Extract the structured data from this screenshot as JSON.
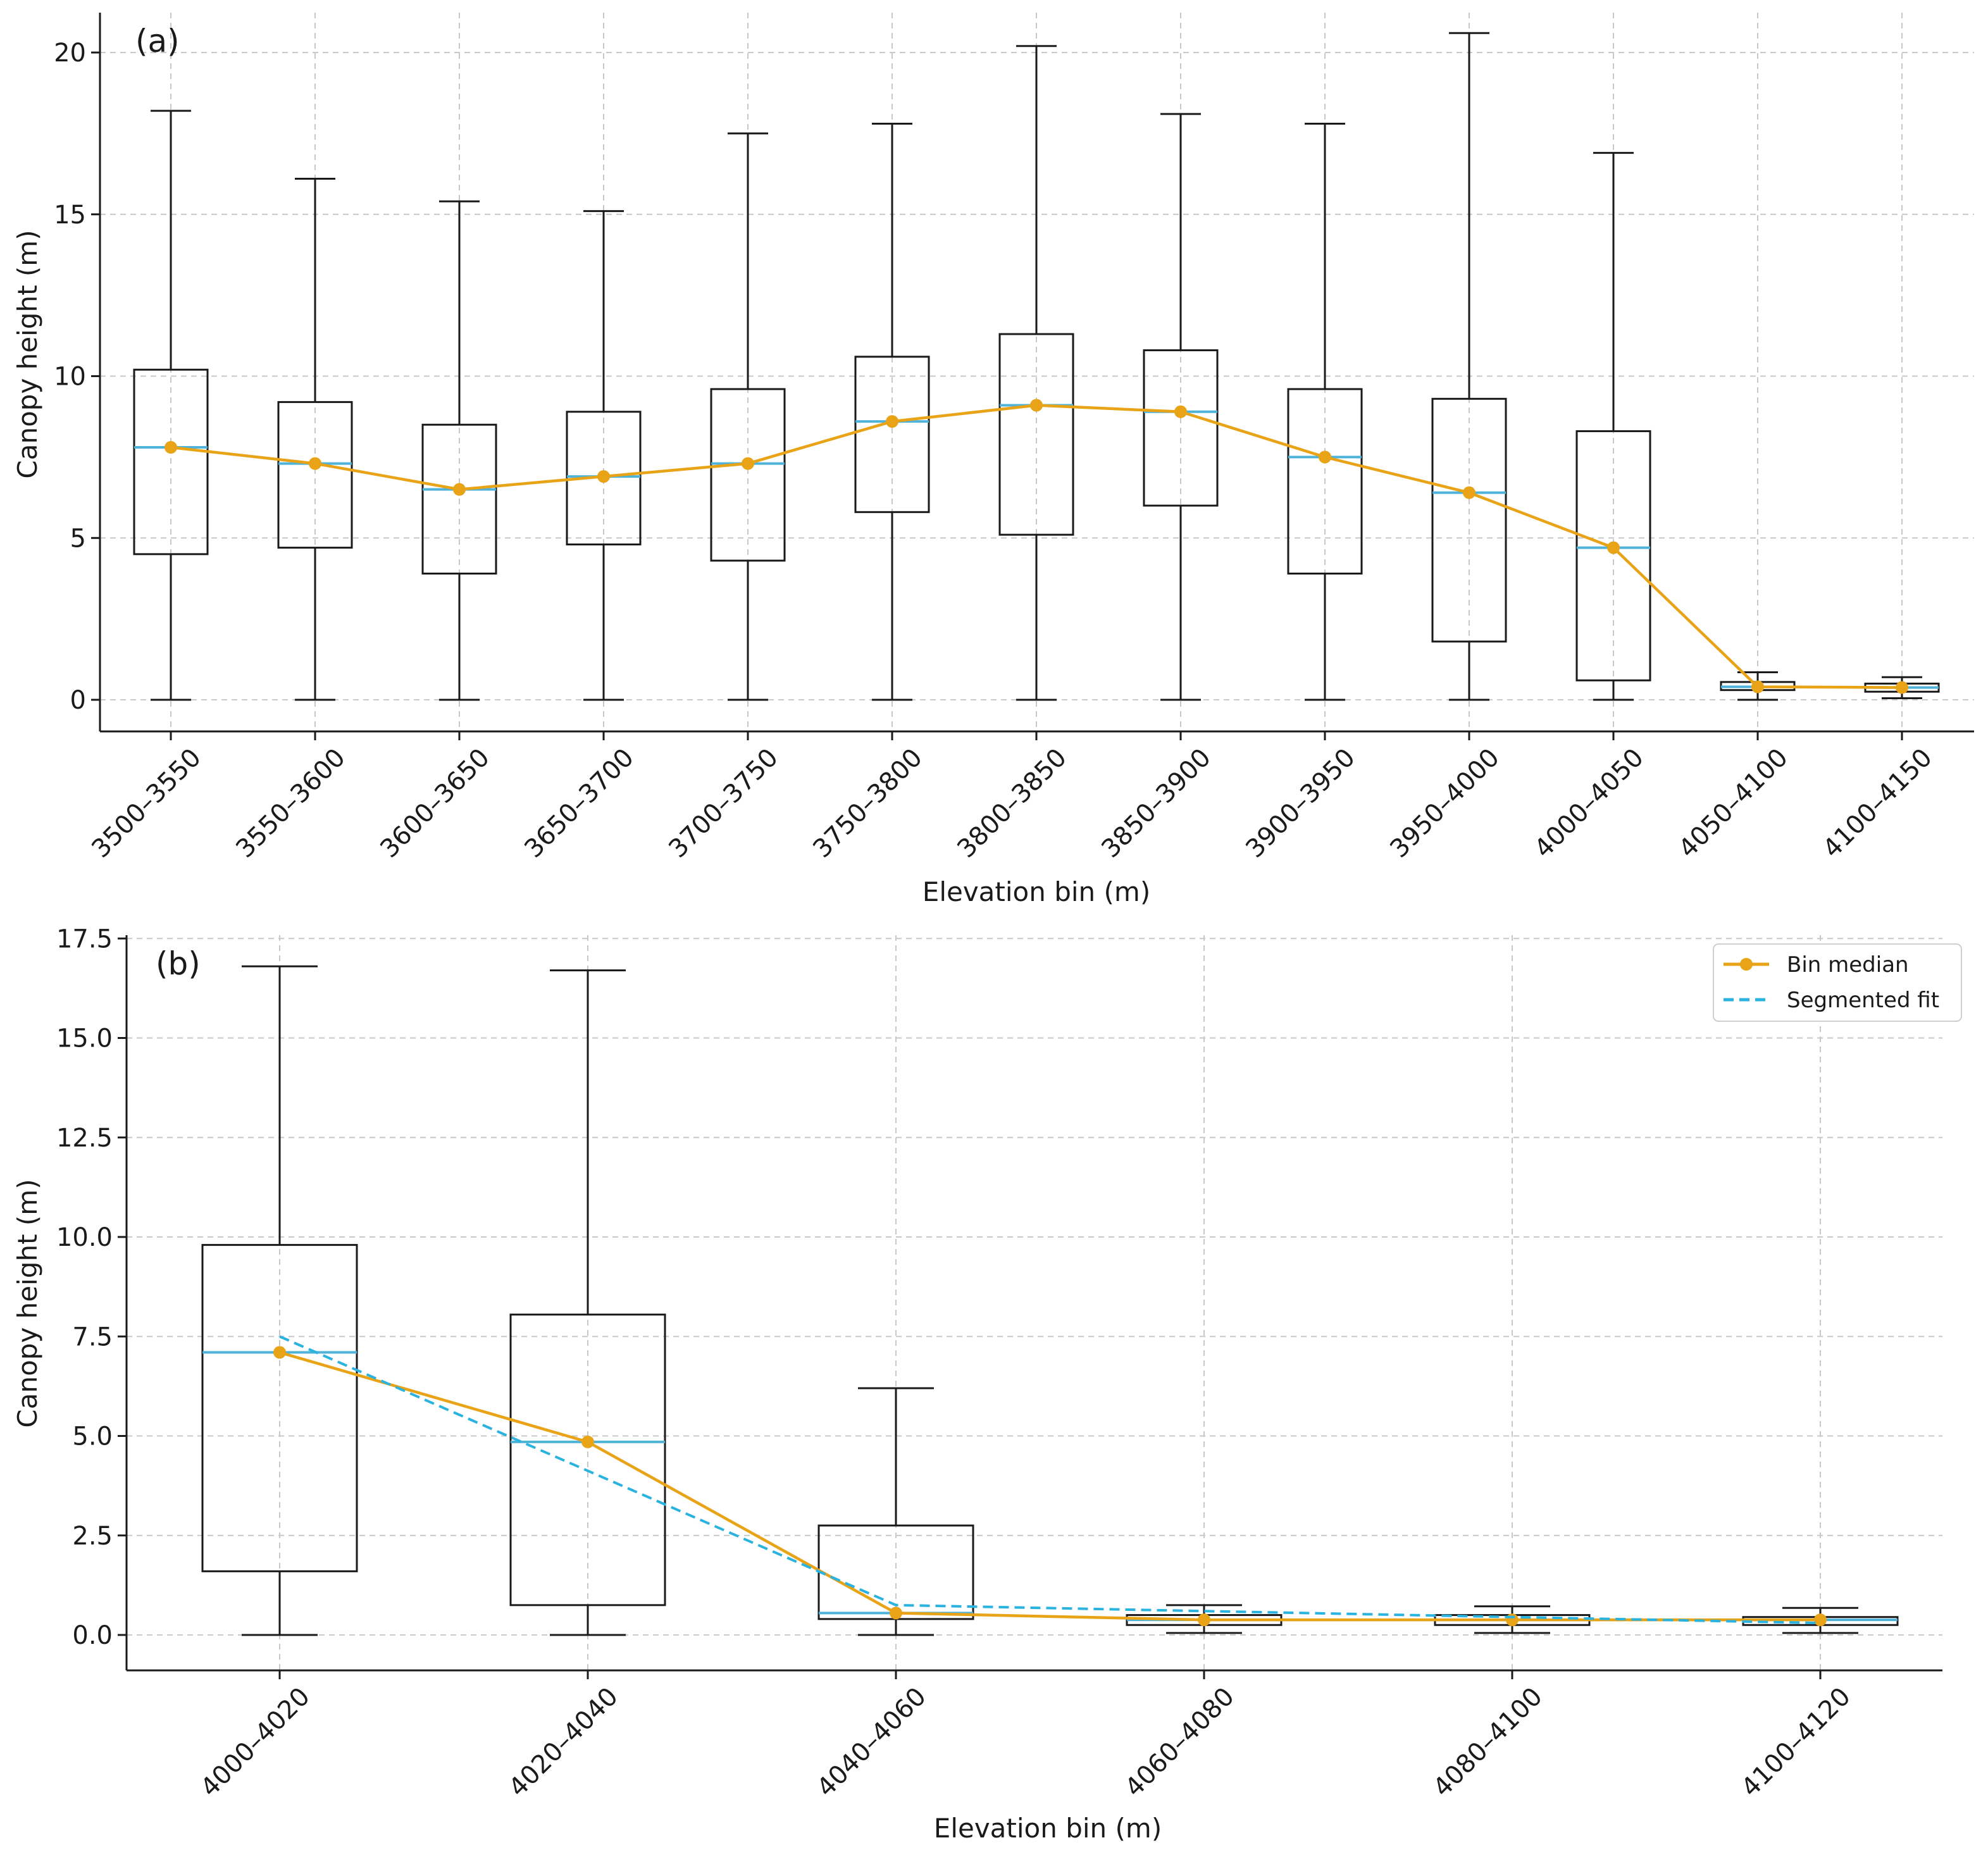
{
  "colors": {
    "median_line": "#E8A317",
    "box_median": "#4FB3D9",
    "segmented_fit": "#2BB3E0",
    "box_stroke": "#1a1a1a",
    "grid": "#c8c8c8"
  },
  "chart_data": [
    {
      "id": "a",
      "type": "box",
      "panel_label": "(a)",
      "xlabel": "Elevation bin (m)",
      "ylabel": "Canopy height (m)",
      "ylim": [
        -1,
        21
      ],
      "yticks": [
        0,
        5,
        10,
        15,
        20
      ],
      "ytick_labels": [
        "0",
        "5",
        "10",
        "15",
        "20"
      ],
      "categories": [
        "3500–3550",
        "3550–3600",
        "3600–3650",
        "3650–3700",
        "3700–3750",
        "3750–3800",
        "3800–3850",
        "3850–3900",
        "3900–3950",
        "3950–4000",
        "4000–4050",
        "4050–4100",
        "4100–4150"
      ],
      "boxes": [
        {
          "whisker_low": 0,
          "q1": 4.5,
          "median": 7.8,
          "q3": 10.2,
          "whisker_high": 18.2
        },
        {
          "whisker_low": 0,
          "q1": 4.7,
          "median": 7.3,
          "q3": 9.2,
          "whisker_high": 16.1
        },
        {
          "whisker_low": 0,
          "q1": 3.9,
          "median": 6.5,
          "q3": 8.5,
          "whisker_high": 15.4
        },
        {
          "whisker_low": 0,
          "q1": 4.8,
          "median": 6.9,
          "q3": 8.9,
          "whisker_high": 15.1
        },
        {
          "whisker_low": 0,
          "q1": 4.3,
          "median": 7.3,
          "q3": 9.6,
          "whisker_high": 17.5
        },
        {
          "whisker_low": 0,
          "q1": 5.8,
          "median": 8.6,
          "q3": 10.6,
          "whisker_high": 17.8
        },
        {
          "whisker_low": 0,
          "q1": 5.1,
          "median": 9.1,
          "q3": 11.3,
          "whisker_high": 20.2
        },
        {
          "whisker_low": 0,
          "q1": 6.0,
          "median": 8.9,
          "q3": 10.8,
          "whisker_high": 18.1
        },
        {
          "whisker_low": 0,
          "q1": 3.9,
          "median": 7.5,
          "q3": 9.6,
          "whisker_high": 17.8
        },
        {
          "whisker_low": 0,
          "q1": 1.8,
          "median": 6.4,
          "q3": 9.3,
          "whisker_high": 20.6
        },
        {
          "whisker_low": 0,
          "q1": 0.6,
          "median": 4.7,
          "q3": 8.3,
          "whisker_high": 16.9
        },
        {
          "whisker_low": 0,
          "q1": 0.3,
          "median": 0.4,
          "q3": 0.55,
          "whisker_high": 0.85
        },
        {
          "whisker_low": 0.05,
          "q1": 0.25,
          "median": 0.38,
          "q3": 0.5,
          "whisker_high": 0.7
        }
      ],
      "series": [
        {
          "name": "Bin median",
          "values": [
            7.8,
            7.3,
            6.5,
            6.9,
            7.3,
            8.6,
            9.1,
            8.9,
            7.5,
            6.4,
            4.7,
            0.4,
            0.38
          ]
        }
      ]
    },
    {
      "id": "b",
      "type": "box",
      "panel_label": "(b)",
      "xlabel": "Elevation bin (m)",
      "ylabel": "Canopy height (m)",
      "ylim": [
        -0.9,
        17.6
      ],
      "yticks": [
        0,
        2.5,
        5,
        7.5,
        10,
        12.5,
        15,
        17.5
      ],
      "ytick_labels": [
        "0.0",
        "2.5",
        "5.0",
        "7.5",
        "10.0",
        "12.5",
        "15.0",
        "17.5"
      ],
      "categories": [
        "4000–4020",
        "4020–4040",
        "4040–4060",
        "4060–4080",
        "4080–4100",
        "4100–4120"
      ],
      "boxes": [
        {
          "whisker_low": 0,
          "q1": 1.6,
          "median": 7.1,
          "q3": 9.8,
          "whisker_high": 16.8
        },
        {
          "whisker_low": 0,
          "q1": 0.75,
          "median": 4.85,
          "q3": 8.05,
          "whisker_high": 16.7
        },
        {
          "whisker_low": 0,
          "q1": 0.4,
          "median": 0.55,
          "q3": 2.75,
          "whisker_high": 6.2
        },
        {
          "whisker_low": 0.05,
          "q1": 0.25,
          "median": 0.38,
          "q3": 0.5,
          "whisker_high": 0.75
        },
        {
          "whisker_low": 0.05,
          "q1": 0.25,
          "median": 0.38,
          "q3": 0.5,
          "whisker_high": 0.72
        },
        {
          "whisker_low": 0.05,
          "q1": 0.25,
          "median": 0.38,
          "q3": 0.45,
          "whisker_high": 0.68
        }
      ],
      "series": [
        {
          "name": "Bin median",
          "style": "solid-marker",
          "values": [
            7.1,
            4.85,
            0.55,
            0.38,
            0.38,
            0.38
          ]
        },
        {
          "name": "Segmented fit",
          "style": "dashed",
          "x": [
            0,
            2,
            5
          ],
          "values": [
            7.5,
            0.75,
            0.3
          ]
        }
      ],
      "legend": {
        "position": "top-right",
        "entries": [
          "Bin median",
          "Segmented fit"
        ]
      }
    }
  ]
}
